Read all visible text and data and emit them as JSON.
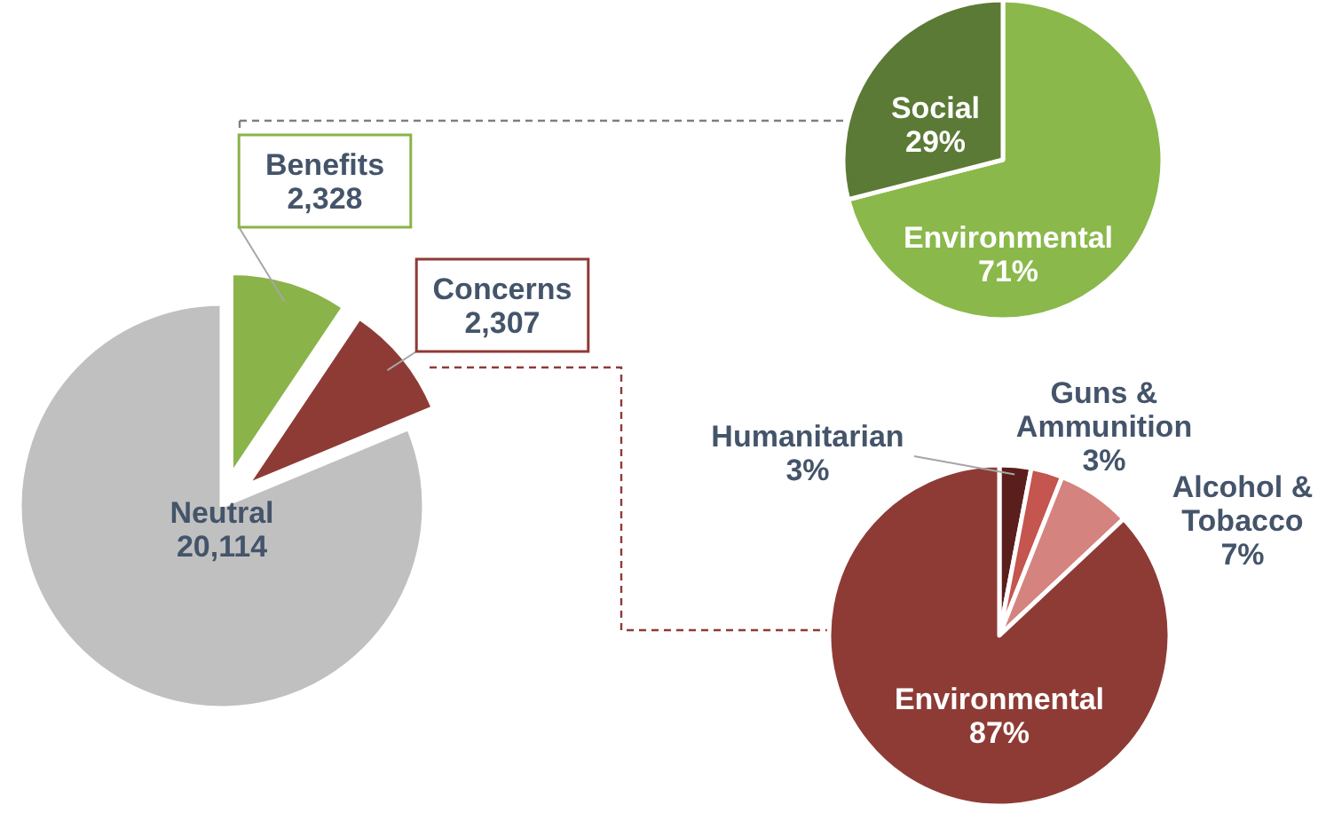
{
  "chart_data": [
    {
      "type": "pie",
      "categories": [
        "Benefits",
        "Concerns",
        "Neutral"
      ],
      "values": [
        2328,
        2307,
        20114
      ],
      "value_labels": [
        "2,328",
        "2,307",
        "20,114"
      ],
      "colors": [
        "#8ab34a",
        "#8e3b36",
        "#c0c0c0"
      ]
    },
    {
      "type": "pie",
      "categories": [
        "Environmental",
        "Social"
      ],
      "values": [
        71,
        29
      ],
      "value_labels": [
        "71%",
        "29%"
      ],
      "colors": [
        "#8ab84a",
        "#5b7a35"
      ]
    },
    {
      "type": "pie",
      "categories": [
        "Humanitarian",
        "Guns & Ammunition",
        "Alcohol & Tobacco",
        "Environmental"
      ],
      "values": [
        3,
        3,
        7,
        87
      ],
      "value_labels": [
        "3%",
        "3%",
        "7%",
        "87%"
      ],
      "colors": [
        "#5a1f1c",
        "#c4554f",
        "#d4837e",
        "#8e3b36"
      ]
    }
  ]
}
